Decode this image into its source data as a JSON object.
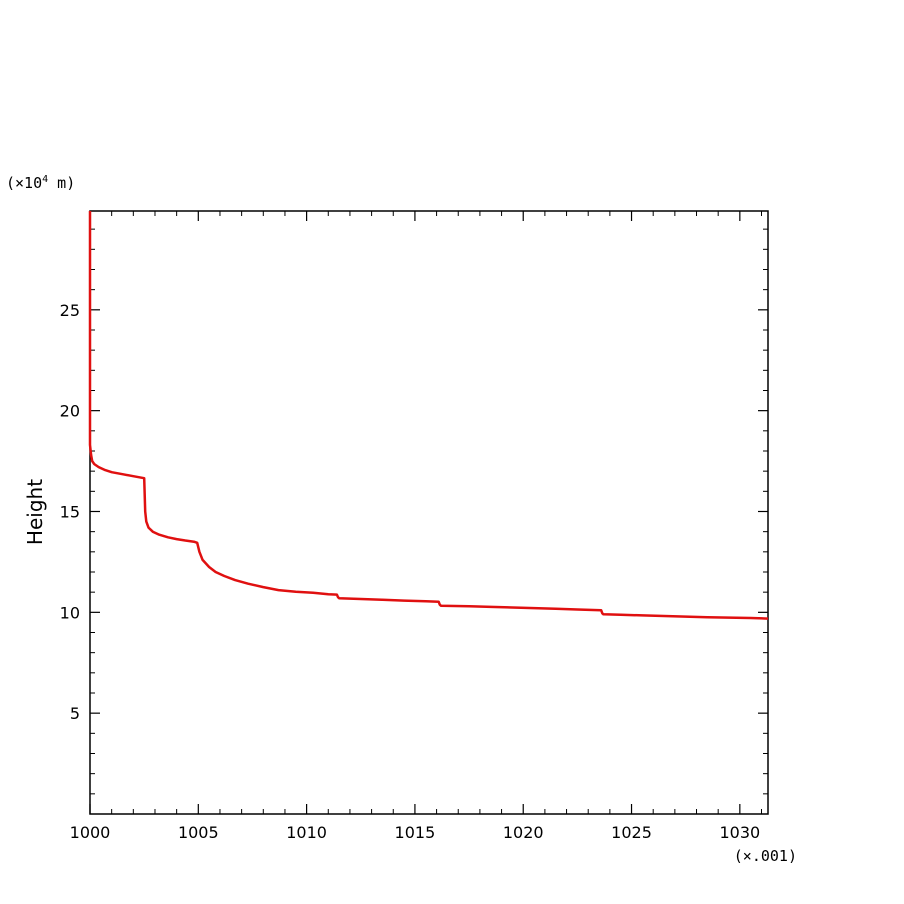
{
  "chart_data": {
    "type": "line",
    "title": "",
    "xlabel": "",
    "ylabel": "Height",
    "x_unit_label": "(×.001)",
    "y_unit_label_prefix": "(×10",
    "y_unit_label_exponent": "4",
    "y_unit_label_suffix": " m)",
    "xlim": [
      1000,
      1031.3
    ],
    "ylim": [
      0,
      29.9
    ],
    "x_ticks": [
      1000,
      1005,
      1010,
      1015,
      1020,
      1025,
      1030
    ],
    "y_ticks": [
      5,
      10,
      15,
      20,
      25
    ],
    "x_minor_step": 1,
    "y_minor_step": 1,
    "grid": false,
    "colors": {
      "line": "#e01010",
      "axis": "#000000"
    },
    "series": [
      {
        "x": [
          1000,
          1000,
          1000.05,
          1000.1,
          1000.2,
          1000.4,
          1000.7,
          1001,
          1001.5,
          1002,
          1002.5,
          1002.55,
          1002.6,
          1002.7,
          1002.9,
          1003.2,
          1003.6,
          1004.0,
          1004.4,
          1004.8,
          1004.95,
          1005.05,
          1005.2,
          1005.5,
          1005.8,
          1006.2,
          1006.7,
          1007.3,
          1008.0,
          1008.7,
          1009.5,
          1010.3,
          1011.0,
          1011.4,
          1011.45,
          1011.5,
          1012.5,
          1013.5,
          1014.5,
          1015.5,
          1016.1,
          1016.15,
          1016.2,
          1017.5,
          1018.5,
          1019.5,
          1020.5,
          1021.5,
          1022.5,
          1023.6,
          1023.65,
          1023.7,
          1024.5,
          1025.5,
          1026.5,
          1027.5,
          1028.5,
          1029.5,
          1030.5,
          1031.3
        ],
        "y": [
          29.9,
          18.3,
          17.8,
          17.5,
          17.35,
          17.2,
          17.05,
          16.95,
          16.85,
          16.75,
          16.65,
          15.0,
          14.5,
          14.2,
          14.0,
          13.85,
          13.72,
          13.63,
          13.56,
          13.5,
          13.45,
          13.0,
          12.6,
          12.25,
          12.0,
          11.8,
          11.6,
          11.42,
          11.25,
          11.1,
          11.02,
          10.97,
          10.9,
          10.88,
          10.75,
          10.7,
          10.66,
          10.62,
          10.58,
          10.55,
          10.52,
          10.38,
          10.33,
          10.3,
          10.27,
          10.24,
          10.21,
          10.18,
          10.14,
          10.1,
          9.95,
          9.9,
          9.88,
          9.85,
          9.82,
          9.79,
          9.76,
          9.74,
          9.72,
          9.69
        ]
      }
    ]
  }
}
